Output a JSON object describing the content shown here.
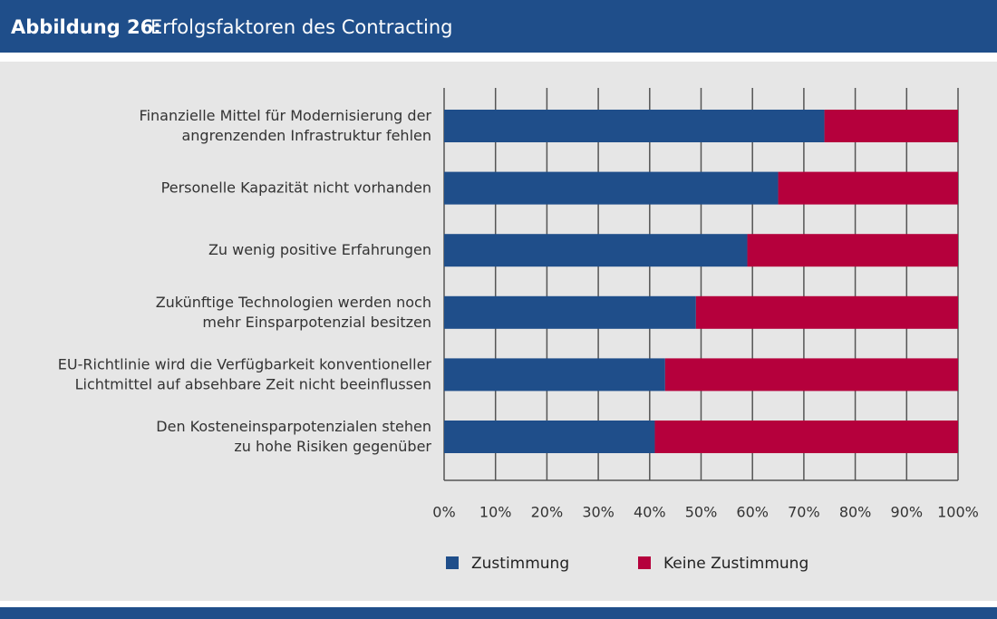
{
  "chart_data": {
    "type": "stacked-bar-horizontal",
    "figure_label": "Abbildung 26:",
    "title": "Erfolgsfaktoren des Contracting",
    "categories": [
      [
        "Finanzielle Mittel für Modernisierung der",
        "angrenzenden Infrastruktur fehlen"
      ],
      [
        "Personelle Kapazität nicht vorhanden"
      ],
      [
        "Zu wenig positive Erfahrungen"
      ],
      [
        "Zukünftige Technologien werden noch",
        "mehr Einsparpotenzial besitzen"
      ],
      [
        "EU-Richtlinie wird die Verfügbarkeit konventioneller",
        "Lichtmittel auf absehbare Zeit nicht beeinflussen"
      ],
      [
        "Den Kosteneinsparpotenzialen stehen",
        "zu hohe Risiken gegenüber"
      ]
    ],
    "series": [
      {
        "name": "Zustimmung",
        "color": "#1f4e8a",
        "values": [
          74,
          65,
          59,
          49,
          43,
          41
        ]
      },
      {
        "name": "Keine Zustimmung",
        "color": "#b5003c",
        "values": [
          26,
          35,
          41,
          51,
          57,
          59
        ]
      }
    ],
    "xlim": [
      0,
      100
    ],
    "xticks": [
      {
        "value": 0,
        "label": "0%"
      },
      {
        "value": 10,
        "label": "10%"
      },
      {
        "value": 20,
        "label": "20%"
      },
      {
        "value": 30,
        "label": "30%"
      },
      {
        "value": 40,
        "label": "40%"
      },
      {
        "value": 50,
        "label": "50%"
      },
      {
        "value": 60,
        "label": "60%"
      },
      {
        "value": 70,
        "label": "70%"
      },
      {
        "value": 80,
        "label": "80%"
      },
      {
        "value": 90,
        "label": "90%"
      },
      {
        "value": 100,
        "label": "100%"
      }
    ],
    "grid": true,
    "legend": "bottom"
  }
}
